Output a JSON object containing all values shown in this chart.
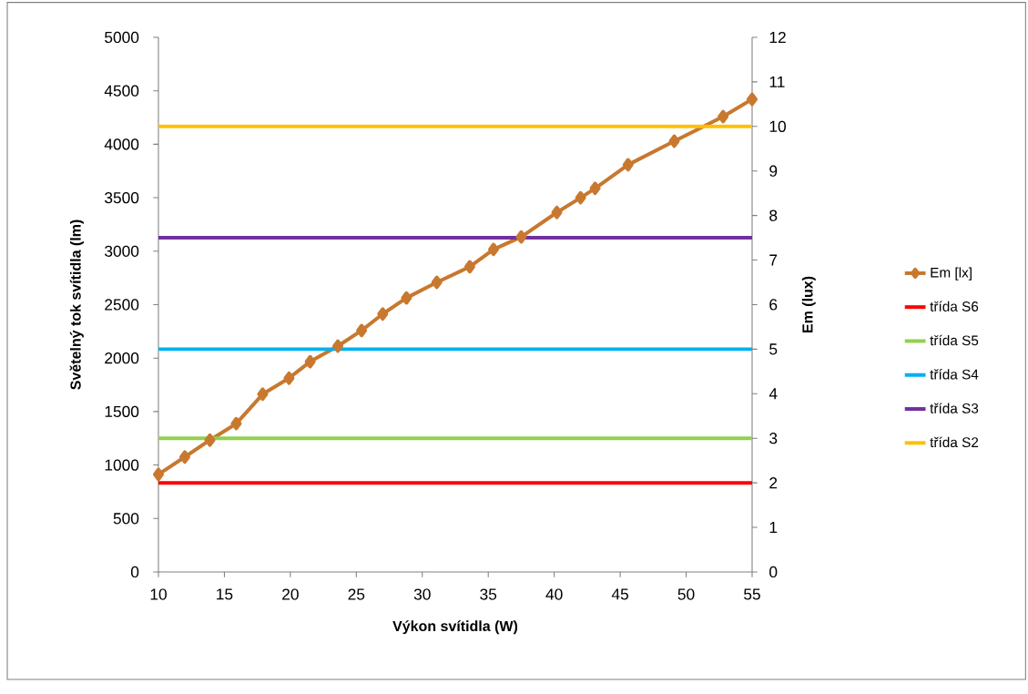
{
  "chart_data": {
    "type": "line",
    "xlabel": "Výkon svítidla (W)",
    "ylabel": "Světelný tok svítidla (lm)",
    "y2label": "Em (lux)",
    "xlim": [
      10,
      55
    ],
    "xticks": [
      10,
      15,
      20,
      25,
      30,
      35,
      40,
      45,
      50,
      55
    ],
    "ylim": [
      0,
      5000
    ],
    "yticks": [
      0,
      500,
      1000,
      1500,
      2000,
      2500,
      3000,
      3500,
      4000,
      4500,
      5000
    ],
    "y2lim": [
      0,
      12
    ],
    "y2ticks": [
      0,
      1,
      2,
      3,
      4,
      5,
      6,
      7,
      8,
      9,
      10,
      11,
      12
    ],
    "legend": "right",
    "grid": false,
    "series": [
      {
        "name": "Em [lx]",
        "color": "#c8782f",
        "axis": "y2",
        "marker": "diamond",
        "x": [
          10,
          12,
          13.9,
          15.9,
          17.9,
          19.9,
          21.5,
          23.6,
          25.4,
          27,
          28.8,
          31.1,
          33.6,
          35.4,
          37.5,
          40.2,
          42,
          43.1,
          45.6,
          49.1,
          52.8,
          55
        ],
        "values": [
          2.19,
          2.58,
          2.96,
          3.33,
          3.99,
          4.35,
          4.72,
          5.07,
          5.42,
          5.79,
          6.15,
          6.5,
          6.85,
          7.24,
          7.52,
          8.07,
          8.4,
          8.61,
          9.14,
          9.67,
          10.22,
          10.61
        ]
      },
      {
        "name": "třída S6",
        "color": "#ff0000",
        "axis": "y2",
        "marker": "none",
        "x": [
          10,
          55
        ],
        "values": [
          2,
          2
        ]
      },
      {
        "name": "třída S5",
        "color": "#92d050",
        "axis": "y2",
        "marker": "none",
        "x": [
          10,
          55
        ],
        "values": [
          3,
          3
        ]
      },
      {
        "name": "třída S4",
        "color": "#00b0f0",
        "axis": "y2",
        "marker": "none",
        "x": [
          10,
          55
        ],
        "values": [
          5,
          5
        ]
      },
      {
        "name": "třída S3",
        "color": "#7030a0",
        "axis": "y2",
        "marker": "none",
        "x": [
          10,
          55
        ],
        "values": [
          7.5,
          7.5
        ]
      },
      {
        "name": "třída S2",
        "color": "#ffc000",
        "axis": "y2",
        "marker": "none",
        "x": [
          10,
          55
        ],
        "values": [
          10,
          10
        ]
      }
    ]
  }
}
